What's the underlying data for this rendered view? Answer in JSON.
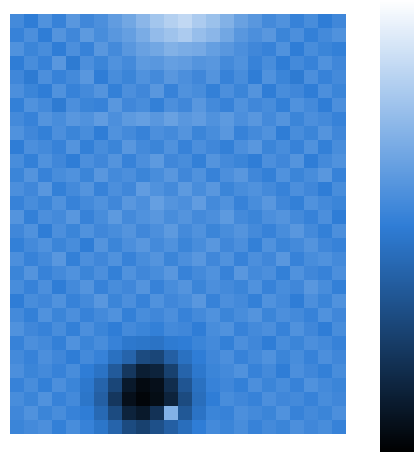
{
  "chart_data": {
    "type": "heatmap",
    "tick_labels": false,
    "colorbar": {
      "range": [
        0,
        1
      ],
      "ticks": []
    },
    "cells": [
      [
        0.55,
        0.5,
        0.58,
        0.52,
        0.6,
        0.54,
        0.57,
        0.62,
        0.66,
        0.72,
        0.78,
        0.82,
        0.85,
        0.8,
        0.76,
        0.7,
        0.64,
        0.6,
        0.55,
        0.58,
        0.52,
        0.56,
        0.5,
        0.54
      ],
      [
        0.52,
        0.57,
        0.5,
        0.59,
        0.54,
        0.61,
        0.56,
        0.6,
        0.63,
        0.68,
        0.74,
        0.77,
        0.8,
        0.75,
        0.72,
        0.66,
        0.6,
        0.57,
        0.6,
        0.53,
        0.57,
        0.51,
        0.55,
        0.58
      ],
      [
        0.58,
        0.53,
        0.56,
        0.5,
        0.57,
        0.52,
        0.6,
        0.55,
        0.6,
        0.64,
        0.66,
        0.7,
        0.68,
        0.67,
        0.63,
        0.6,
        0.57,
        0.54,
        0.52,
        0.58,
        0.5,
        0.56,
        0.53,
        0.51
      ],
      [
        0.5,
        0.56,
        0.52,
        0.6,
        0.49,
        0.57,
        0.53,
        0.58,
        0.55,
        0.61,
        0.6,
        0.63,
        0.62,
        0.59,
        0.6,
        0.55,
        0.58,
        0.52,
        0.56,
        0.5,
        0.55,
        0.52,
        0.58,
        0.54
      ],
      [
        0.54,
        0.49,
        0.57,
        0.52,
        0.55,
        0.6,
        0.5,
        0.56,
        0.53,
        0.58,
        0.55,
        0.6,
        0.57,
        0.54,
        0.59,
        0.52,
        0.56,
        0.5,
        0.58,
        0.53,
        0.49,
        0.57,
        0.52,
        0.55
      ],
      [
        0.57,
        0.53,
        0.5,
        0.58,
        0.52,
        0.55,
        0.59,
        0.51,
        0.57,
        0.54,
        0.6,
        0.52,
        0.58,
        0.56,
        0.51,
        0.57,
        0.53,
        0.59,
        0.5,
        0.56,
        0.54,
        0.5,
        0.57,
        0.53
      ],
      [
        0.51,
        0.58,
        0.55,
        0.49,
        0.57,
        0.53,
        0.52,
        0.6,
        0.54,
        0.56,
        0.51,
        0.57,
        0.54,
        0.6,
        0.55,
        0.52,
        0.58,
        0.54,
        0.56,
        0.51,
        0.58,
        0.55,
        0.5,
        0.57
      ],
      [
        0.55,
        0.52,
        0.59,
        0.56,
        0.6,
        0.58,
        0.62,
        0.57,
        0.61,
        0.63,
        0.6,
        0.64,
        0.6,
        0.62,
        0.58,
        0.61,
        0.57,
        0.6,
        0.55,
        0.59,
        0.53,
        0.57,
        0.55,
        0.52
      ],
      [
        0.58,
        0.54,
        0.51,
        0.57,
        0.53,
        0.56,
        0.5,
        0.58,
        0.55,
        0.52,
        0.57,
        0.55,
        0.59,
        0.53,
        0.56,
        0.6,
        0.52,
        0.55,
        0.58,
        0.5,
        0.56,
        0.53,
        0.59,
        0.54
      ],
      [
        0.5,
        0.57,
        0.55,
        0.52,
        0.59,
        0.51,
        0.56,
        0.53,
        0.6,
        0.55,
        0.53,
        0.58,
        0.52,
        0.57,
        0.54,
        0.51,
        0.57,
        0.6,
        0.53,
        0.56,
        0.52,
        0.58,
        0.51,
        0.56
      ],
      [
        0.56,
        0.51,
        0.58,
        0.54,
        0.5,
        0.57,
        0.54,
        0.59,
        0.52,
        0.57,
        0.61,
        0.54,
        0.56,
        0.51,
        0.59,
        0.55,
        0.53,
        0.5,
        0.57,
        0.54,
        0.59,
        0.5,
        0.55,
        0.58
      ],
      [
        0.53,
        0.59,
        0.52,
        0.56,
        0.58,
        0.53,
        0.6,
        0.55,
        0.57,
        0.53,
        0.56,
        0.6,
        0.54,
        0.58,
        0.52,
        0.57,
        0.6,
        0.54,
        0.51,
        0.58,
        0.53,
        0.56,
        0.6,
        0.52
      ],
      [
        0.57,
        0.54,
        0.6,
        0.51,
        0.55,
        0.59,
        0.52,
        0.57,
        0.54,
        0.62,
        0.58,
        0.55,
        0.61,
        0.56,
        0.6,
        0.53,
        0.56,
        0.58,
        0.55,
        0.52,
        0.57,
        0.54,
        0.5,
        0.56
      ],
      [
        0.52,
        0.56,
        0.53,
        0.58,
        0.52,
        0.55,
        0.58,
        0.54,
        0.6,
        0.57,
        0.63,
        0.59,
        0.57,
        0.62,
        0.55,
        0.58,
        0.52,
        0.56,
        0.6,
        0.54,
        0.51,
        0.58,
        0.55,
        0.53
      ],
      [
        0.59,
        0.51,
        0.57,
        0.55,
        0.6,
        0.52,
        0.56,
        0.61,
        0.55,
        0.58,
        0.6,
        0.56,
        0.59,
        0.55,
        0.57,
        0.61,
        0.55,
        0.53,
        0.57,
        0.59,
        0.55,
        0.52,
        0.57,
        0.5
      ],
      [
        0.54,
        0.58,
        0.5,
        0.57,
        0.53,
        0.58,
        0.54,
        0.56,
        0.59,
        0.54,
        0.57,
        0.61,
        0.55,
        0.58,
        0.53,
        0.56,
        0.59,
        0.55,
        0.52,
        0.56,
        0.6,
        0.55,
        0.51,
        0.57
      ],
      [
        0.51,
        0.55,
        0.58,
        0.53,
        0.56,
        0.5,
        0.59,
        0.53,
        0.57,
        0.6,
        0.55,
        0.58,
        0.53,
        0.56,
        0.6,
        0.54,
        0.57,
        0.51,
        0.58,
        0.53,
        0.55,
        0.59,
        0.54,
        0.52
      ],
      [
        0.57,
        0.52,
        0.55,
        0.6,
        0.51,
        0.57,
        0.54,
        0.58,
        0.52,
        0.56,
        0.59,
        0.53,
        0.57,
        0.6,
        0.54,
        0.58,
        0.52,
        0.57,
        0.54,
        0.6,
        0.52,
        0.56,
        0.58,
        0.55
      ],
      [
        0.53,
        0.59,
        0.52,
        0.55,
        0.58,
        0.53,
        0.57,
        0.51,
        0.58,
        0.54,
        0.56,
        0.6,
        0.52,
        0.55,
        0.58,
        0.52,
        0.6,
        0.55,
        0.57,
        0.51,
        0.58,
        0.54,
        0.52,
        0.57
      ],
      [
        0.56,
        0.52,
        0.57,
        0.5,
        0.55,
        0.59,
        0.52,
        0.56,
        0.54,
        0.59,
        0.52,
        0.56,
        0.59,
        0.53,
        0.57,
        0.55,
        0.53,
        0.58,
        0.52,
        0.56,
        0.54,
        0.6,
        0.56,
        0.51
      ],
      [
        0.5,
        0.56,
        0.54,
        0.58,
        0.52,
        0.55,
        0.6,
        0.53,
        0.57,
        0.52,
        0.58,
        0.54,
        0.56,
        0.6,
        0.52,
        0.57,
        0.55,
        0.51,
        0.58,
        0.55,
        0.5,
        0.57,
        0.53,
        0.58
      ],
      [
        0.55,
        0.51,
        0.58,
        0.53,
        0.57,
        0.52,
        0.55,
        0.58,
        0.51,
        0.56,
        0.54,
        0.57,
        0.52,
        0.55,
        0.58,
        0.53,
        0.56,
        0.59,
        0.53,
        0.57,
        0.55,
        0.52,
        0.58,
        0.54
      ],
      [
        0.58,
        0.54,
        0.52,
        0.56,
        0.51,
        0.57,
        0.53,
        0.5,
        0.55,
        0.53,
        0.51,
        0.55,
        0.54,
        0.5,
        0.56,
        0.58,
        0.52,
        0.55,
        0.57,
        0.52,
        0.58,
        0.54,
        0.5,
        0.56
      ],
      [
        0.52,
        0.57,
        0.55,
        0.51,
        0.58,
        0.53,
        0.56,
        0.52,
        0.48,
        0.47,
        0.46,
        0.49,
        0.5,
        0.53,
        0.55,
        0.51,
        0.57,
        0.54,
        0.5,
        0.56,
        0.53,
        0.57,
        0.55,
        0.52
      ],
      [
        0.55,
        0.52,
        0.57,
        0.54,
        0.5,
        0.55,
        0.52,
        0.45,
        0.4,
        0.3,
        0.28,
        0.38,
        0.45,
        0.5,
        0.54,
        0.57,
        0.52,
        0.55,
        0.58,
        0.53,
        0.56,
        0.52,
        0.57,
        0.54
      ],
      [
        0.57,
        0.53,
        0.55,
        0.52,
        0.56,
        0.5,
        0.46,
        0.36,
        0.22,
        0.12,
        0.14,
        0.26,
        0.4,
        0.48,
        0.53,
        0.55,
        0.58,
        0.52,
        0.55,
        0.5,
        0.57,
        0.54,
        0.51,
        0.56
      ],
      [
        0.52,
        0.56,
        0.51,
        0.57,
        0.53,
        0.48,
        0.4,
        0.28,
        0.1,
        0.04,
        0.06,
        0.18,
        0.34,
        0.45,
        0.52,
        0.54,
        0.51,
        0.57,
        0.53,
        0.56,
        0.52,
        0.58,
        0.55,
        0.53
      ],
      [
        0.56,
        0.53,
        0.58,
        0.52,
        0.55,
        0.47,
        0.38,
        0.22,
        0.06,
        0.02,
        0.05,
        0.14,
        0.3,
        0.44,
        0.5,
        0.56,
        0.54,
        0.52,
        0.57,
        0.54,
        0.55,
        0.52,
        0.56,
        0.54
      ],
      [
        0.54,
        0.58,
        0.53,
        0.56,
        0.52,
        0.5,
        0.42,
        0.3,
        0.14,
        0.1,
        0.2,
        0.7,
        0.35,
        0.46,
        0.53,
        0.52,
        0.57,
        0.55,
        0.53,
        0.58,
        0.52,
        0.55,
        0.53,
        0.57
      ],
      [
        0.53,
        0.55,
        0.57,
        0.51,
        0.56,
        0.52,
        0.47,
        0.4,
        0.3,
        0.26,
        0.32,
        0.38,
        0.44,
        0.5,
        0.55,
        0.53,
        0.56,
        0.52,
        0.55,
        0.53,
        0.57,
        0.54,
        0.56,
        0.52
      ]
    ]
  }
}
